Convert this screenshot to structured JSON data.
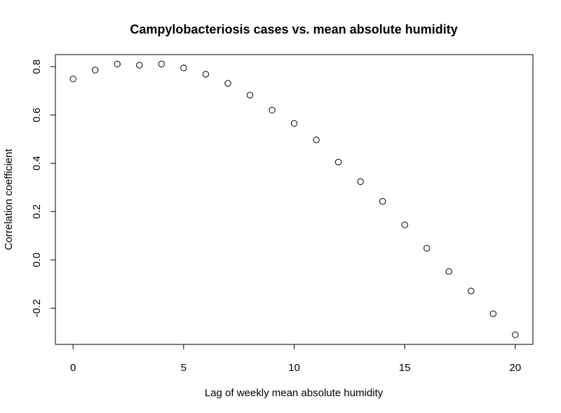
{
  "chart_data": {
    "type": "scatter",
    "title": "Campylobacteriosis cases vs. mean absolute humidity",
    "xlabel": "Lag of weekly mean absolute humidity",
    "ylabel": "Correlation coefficient",
    "xlim": [
      -0.8,
      20.8
    ],
    "ylim": [
      -0.35,
      0.85
    ],
    "x_ticks": [
      0,
      5,
      10,
      15,
      20
    ],
    "x_tick_labels": [
      "0",
      "5",
      "10",
      "15",
      "20"
    ],
    "y_ticks": [
      -0.2,
      0.0,
      0.2,
      0.4,
      0.6,
      0.8
    ],
    "y_tick_labels": [
      "-0.2",
      "0.0",
      "0.2",
      "0.4",
      "0.6",
      "0.8"
    ],
    "grid": false,
    "marker": "open-circle",
    "series": [
      {
        "x": [
          0,
          1,
          2,
          3,
          4,
          5,
          6,
          7,
          8,
          9,
          10,
          11,
          12,
          13,
          14,
          15,
          16,
          17,
          18,
          19,
          20
        ],
        "y": [
          0.749,
          0.786,
          0.811,
          0.806,
          0.811,
          0.795,
          0.769,
          0.731,
          0.682,
          0.62,
          0.565,
          0.497,
          0.405,
          0.324,
          0.242,
          0.145,
          0.048,
          -0.048,
          -0.129,
          -0.223,
          -0.31
        ]
      }
    ]
  }
}
